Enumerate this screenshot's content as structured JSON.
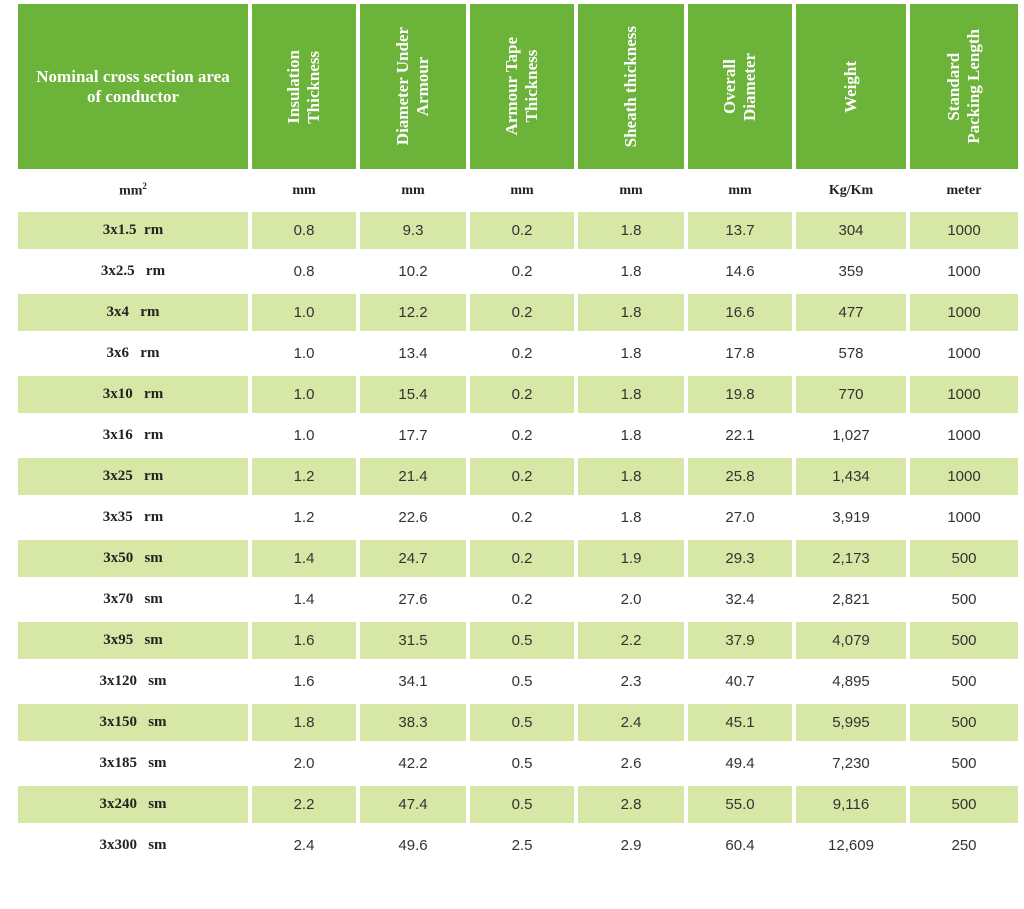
{
  "headers": [
    "Nominal cross section area of conductor",
    "Insulation\nThickness",
    "Diameter Under\nArmour",
    "Armour Tape\nThickness",
    "Sheath thickness",
    "Overall\nDiameter",
    "Weight",
    "Standard\nPacking Length"
  ],
  "units": [
    "mm",
    "mm",
    "mm",
    "mm",
    "mm",
    "mm",
    "Kg/Km",
    "meter"
  ],
  "units_first_sup": "2",
  "rows": [
    [
      "3x1.5  rm",
      "0.8",
      "9.3",
      "0.2",
      "1.8",
      "13.7",
      "304",
      "1000"
    ],
    [
      "3x2.5   rm",
      "0.8",
      "10.2",
      "0.2",
      "1.8",
      "14.6",
      "359",
      "1000"
    ],
    [
      "3x4   rm",
      "1.0",
      "12.2",
      "0.2",
      "1.8",
      "16.6",
      "477",
      "1000"
    ],
    [
      "3x6   rm",
      "1.0",
      "13.4",
      "0.2",
      "1.8",
      "17.8",
      "578",
      "1000"
    ],
    [
      "3x10   rm",
      "1.0",
      "15.4",
      "0.2",
      "1.8",
      "19.8",
      "770",
      "1000"
    ],
    [
      "3x16   rm",
      "1.0",
      "17.7",
      "0.2",
      "1.8",
      "22.1",
      "1,027",
      "1000"
    ],
    [
      "3x25   rm",
      "1.2",
      "21.4",
      "0.2",
      "1.8",
      "25.8",
      "1,434",
      "1000"
    ],
    [
      "3x35   rm",
      "1.2",
      "22.6",
      "0.2",
      "1.8",
      "27.0",
      "3,919",
      "1000"
    ],
    [
      "3x50   sm",
      "1.4",
      "24.7",
      "0.2",
      "1.9",
      "29.3",
      "2,173",
      "500"
    ],
    [
      "3x70   sm",
      "1.4",
      "27.6",
      "0.2",
      "2.0",
      "32.4",
      "2,821",
      "500"
    ],
    [
      "3x95   sm",
      "1.6",
      "31.5",
      "0.5",
      "2.2",
      "37.9",
      "4,079",
      "500"
    ],
    [
      "3x120   sm",
      "1.6",
      "34.1",
      "0.5",
      "2.3",
      "40.7",
      "4,895",
      "500"
    ],
    [
      "3x150   sm",
      "1.8",
      "38.3",
      "0.5",
      "2.4",
      "45.1",
      "5,995",
      "500"
    ],
    [
      "3x185   sm",
      "2.0",
      "42.2",
      "0.5",
      "2.6",
      "49.4",
      "7,230",
      "500"
    ],
    [
      "3x240   sm",
      "2.2",
      "47.4",
      "0.5",
      "2.8",
      "55.0",
      "9,116",
      "500"
    ],
    [
      "3x300   sm",
      "2.4",
      "49.6",
      "2.5",
      "2.9",
      "60.4",
      "12,609",
      "250"
    ]
  ],
  "colors": {
    "header_bg": "#6cb33a",
    "row_shade": "#d7e7a6"
  }
}
